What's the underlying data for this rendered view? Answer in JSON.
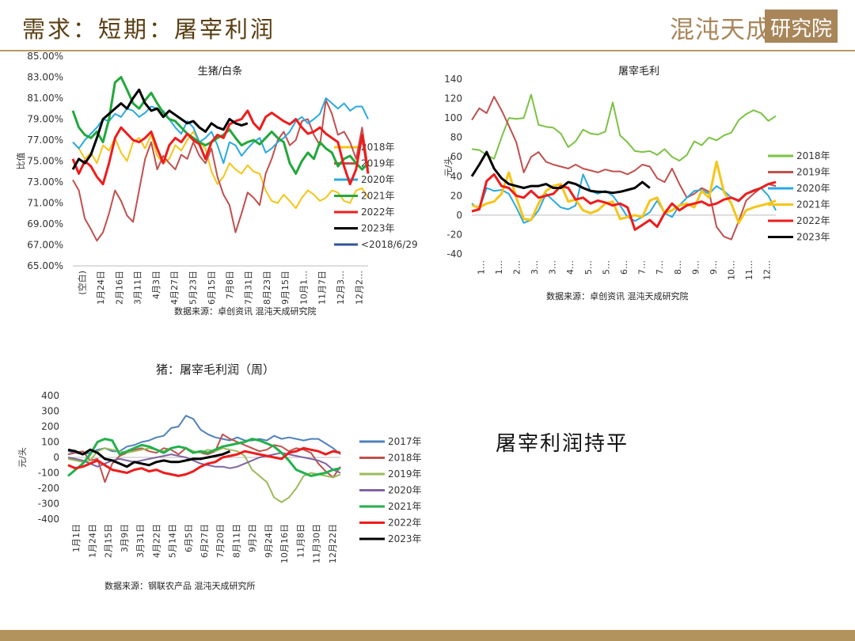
{
  "header": {
    "title": "需求：短期：屠宰利润",
    "logo": {
      "text": "混沌天成",
      "box_text": "研究院"
    }
  },
  "conclusion": "屠宰利润持平",
  "colors": {
    "accent": "#b3935c",
    "title_brown": "#5a3e12"
  },
  "chart_data": [
    {
      "type": "line",
      "title": "生猪/白条",
      "ylabel": "比值",
      "source": "数据来源：卓创资讯 混沌天成研究院",
      "ylim": [
        0.65,
        0.85
      ],
      "yticks": [
        "65.00%",
        "67.00%",
        "69.00%",
        "71.00%",
        "73.00%",
        "75.00%",
        "77.00%",
        "79.00%",
        "81.00%",
        "83.00%",
        "85.00%"
      ],
      "xticks": [
        "(空白)",
        "1月24日",
        "2月16日",
        "3月11日",
        "4月3日",
        "4月27日",
        "5月23日",
        "6月15日",
        "7月8日",
        "7月31日",
        "8月23日",
        "9月15日",
        "10月1…",
        "11月7日",
        "12月3…",
        "12月2…"
      ],
      "legend_position": "right",
      "series": [
        {
          "name": "2018年",
          "color": "#f5c518",
          "values": [
            0.768,
            0.762,
            0.752,
            0.758,
            0.748,
            0.765,
            0.76,
            0.772,
            0.758,
            0.75,
            0.768,
            0.772,
            0.762,
            0.775,
            0.755,
            0.748,
            0.752,
            0.765,
            0.76,
            0.77,
            0.778,
            0.768,
            0.762,
            0.74,
            0.728,
            0.735,
            0.748,
            0.742,
            0.738,
            0.746,
            0.74,
            0.738,
            0.722,
            0.712,
            0.71,
            0.718,
            0.712,
            0.705,
            0.715,
            0.722,
            0.718,
            0.712,
            0.715,
            0.722,
            0.72,
            0.712,
            0.71,
            0.722,
            0.724,
            0.715
          ]
        },
        {
          "name": "2019年",
          "color": "#c0504d",
          "values": [
            0.732,
            0.722,
            0.695,
            0.685,
            0.674,
            0.682,
            0.7,
            0.722,
            0.712,
            0.698,
            0.692,
            0.722,
            0.752,
            0.768,
            0.742,
            0.755,
            0.748,
            0.742,
            0.756,
            0.752,
            0.768,
            0.755,
            0.748,
            0.762,
            0.735,
            0.718,
            0.708,
            0.682,
            0.7,
            0.72,
            0.715,
            0.708,
            0.738,
            0.752,
            0.77,
            0.778,
            0.765,
            0.77,
            0.788,
            0.79,
            0.775,
            0.765,
            0.808,
            0.795,
            0.775,
            0.778,
            0.768,
            0.752,
            0.782,
            0.742
          ]
        },
        {
          "name": "2020年",
          "color": "#2aa9e0",
          "values": [
            0.768,
            0.762,
            0.77,
            0.776,
            0.782,
            0.79,
            0.788,
            0.795,
            0.792,
            0.8,
            0.798,
            0.792,
            0.796,
            0.802,
            0.8,
            0.798,
            0.79,
            0.782,
            0.776,
            0.788,
            0.782,
            0.768,
            0.772,
            0.778,
            0.765,
            0.748,
            0.768,
            0.765,
            0.755,
            0.762,
            0.768,
            0.772,
            0.758,
            0.762,
            0.768,
            0.772,
            0.778,
            0.788,
            0.792,
            0.786,
            0.79,
            0.795,
            0.81,
            0.805,
            0.8,
            0.805,
            0.798,
            0.802,
            0.802,
            0.79
          ]
        },
        {
          "name": "2021年",
          "color": "#22a83a",
          "values": [
            0.798,
            0.782,
            0.775,
            0.772,
            0.778,
            0.768,
            0.79,
            0.825,
            0.83,
            0.818,
            0.805,
            0.8,
            0.808,
            0.815,
            0.805,
            0.796,
            0.79,
            0.788,
            0.782,
            0.776,
            0.772,
            0.768,
            0.765,
            0.768,
            0.772,
            0.775,
            0.78,
            0.772,
            0.765,
            0.768,
            0.77,
            0.766,
            0.772,
            0.778,
            0.772,
            0.768,
            0.748,
            0.738,
            0.75,
            0.758,
            0.752,
            0.768,
            0.762,
            0.758,
            0.745,
            0.752,
            0.755,
            0.748,
            0.742,
            0.748
          ]
        },
        {
          "name": "2022年",
          "color": "#ee1c1c",
          "values": [
            0.752,
            0.738,
            0.75,
            0.745,
            0.735,
            0.728,
            0.748,
            0.772,
            0.782,
            0.776,
            0.77,
            0.768,
            0.772,
            0.778,
            0.762,
            0.748,
            0.765,
            0.772,
            0.768,
            0.776,
            0.77,
            0.766,
            0.752,
            0.768,
            0.775,
            0.772,
            0.785,
            0.788,
            0.79,
            0.798,
            0.786,
            0.78,
            0.792,
            0.796,
            0.792,
            0.788,
            0.785,
            0.79,
            0.782,
            0.776,
            0.778,
            0.782,
            0.776,
            0.772,
            0.768,
            0.745,
            0.728,
            0.742,
            0.775,
            0.738
          ]
        },
        {
          "name": "2023年",
          "color": "#000000",
          "values": [
            0.742,
            0.752,
            0.748,
            0.756,
            0.772,
            0.79,
            0.795,
            0.8,
            0.805,
            0.8,
            0.81,
            0.818,
            0.805,
            0.798,
            0.8,
            0.792,
            0.798,
            0.794,
            0.79,
            0.786,
            0.788,
            0.782,
            0.778,
            0.786,
            0.782,
            0.78,
            0.79,
            0.786,
            0.784,
            0.786
          ]
        },
        {
          "name": "<2018/6/29",
          "color": "#2f5597",
          "values": []
        }
      ]
    },
    {
      "type": "line",
      "title": "屠宰毛利",
      "ylabel": "元/头",
      "source": "数据来源：卓创资讯 混沌天成研究院",
      "ylim": [
        -40,
        140
      ],
      "yticks": [
        -40,
        -20,
        0,
        20,
        40,
        60,
        80,
        100,
        120,
        140
      ],
      "xticks": [
        "1…",
        "1…",
        "2…",
        "3…",
        "3…",
        "4…",
        "5…",
        "5…",
        "6…",
        "7…",
        "7…",
        "8…",
        "9…",
        "9…",
        "10…",
        "11…",
        "12…"
      ],
      "legend_position": "right",
      "series": [
        {
          "name": "2018年",
          "color": "#7cc242",
          "values": [
            68,
            67,
            62,
            58,
            80,
            100,
            99,
            100,
            124,
            93,
            91,
            90,
            84,
            70,
            76,
            88,
            84,
            83,
            86,
            116,
            82,
            75,
            66,
            65,
            66,
            62,
            68,
            60,
            56,
            62,
            76,
            72,
            80,
            77,
            82,
            85,
            98,
            104,
            108,
            105,
            97,
            102
          ]
        },
        {
          "name": "2019年",
          "color": "#c0504d",
          "values": [
            98,
            110,
            105,
            122,
            108,
            92,
            75,
            44,
            60,
            65,
            55,
            52,
            50,
            48,
            52,
            48,
            46,
            44,
            47,
            45,
            45,
            42,
            46,
            52,
            50,
            38,
            34,
            48,
            32,
            18,
            22,
            28,
            24,
            -12,
            -22,
            -25,
            -6,
            15,
            22,
            28,
            32,
            30
          ]
        },
        {
          "name": "2020年",
          "color": "#2aa9e0",
          "values": [
            12,
            6,
            28,
            25,
            26,
            22,
            8,
            -8,
            -5,
            5,
            22,
            15,
            8,
            6,
            10,
            42,
            25,
            22,
            25,
            20,
            10,
            -2,
            -6,
            -2,
            3,
            15,
            2,
            -2,
            10,
            18,
            25,
            26,
            22,
            30,
            25,
            18,
            14,
            22,
            26,
            28,
            20,
            5
          ]
        },
        {
          "name": "2021年",
          "color": "#f5c518",
          "values": [
            10,
            8,
            12,
            14,
            22,
            44,
            18,
            -4,
            -5,
            12,
            25,
            30,
            32,
            14,
            16,
            5,
            2,
            5,
            12,
            14,
            -4,
            -2,
            0,
            -2,
            15,
            18,
            2,
            5,
            10,
            12,
            8,
            25,
            18,
            55,
            24,
            12,
            -8,
            5,
            8,
            10,
            12,
            15
          ]
        },
        {
          "name": "2022年",
          "color": "#ee1c1c",
          "values": [
            4,
            6,
            35,
            42,
            30,
            28,
            20,
            18,
            25,
            18,
            20,
            22,
            30,
            28,
            16,
            18,
            12,
            15,
            13,
            10,
            12,
            8,
            -15,
            -10,
            -5,
            -12,
            2,
            12,
            5,
            10,
            12,
            14,
            10,
            12,
            16,
            18,
            15,
            22,
            25,
            28,
            32,
            34
          ]
        },
        {
          "name": "2023年",
          "color": "#000000",
          "values": [
            40,
            52,
            65,
            48,
            38,
            32,
            30,
            28,
            30,
            30,
            32,
            28,
            28,
            34,
            32,
            28,
            25,
            24,
            24,
            23,
            24,
            26,
            28,
            34,
            28
          ]
        }
      ]
    },
    {
      "type": "line",
      "title": "猪：屠宰毛利润（周）",
      "ylabel": "元/头",
      "source": "数据来源：钢联农产品 混沌天成研究所",
      "ylim": [
        -400,
        400
      ],
      "yticks": [
        -400,
        -300,
        -200,
        -100,
        0,
        100,
        200,
        300,
        400
      ],
      "xticks": [
        "1月1日",
        "1月24日",
        "2月15日",
        "3月9日",
        "3月31日",
        "4月22日",
        "5月14日",
        "6月5日",
        "6月27日",
        "7月20日",
        "8月11日",
        "9月2日",
        "9月24日",
        "10月16日",
        "11月8日",
        "11月30日",
        "12月22日"
      ],
      "legend_position": "right",
      "series": [
        {
          "name": "2017年",
          "color": "#4f81bd",
          "values": [
            40,
            30,
            20,
            30,
            50,
            60,
            40,
            40,
            70,
            80,
            100,
            110,
            130,
            140,
            190,
            200,
            270,
            250,
            180,
            150,
            130,
            120,
            110,
            130,
            110,
            110,
            120,
            110,
            140,
            120,
            130,
            120,
            110,
            120,
            120,
            90,
            60,
            20
          ]
        },
        {
          "name": "2018年",
          "color": "#c0504d",
          "values": [
            20,
            30,
            40,
            -20,
            -10,
            -160,
            -40,
            10,
            30,
            50,
            60,
            40,
            30,
            60,
            50,
            20,
            60,
            40,
            30,
            20,
            40,
            150,
            120,
            100,
            80,
            60,
            40,
            50,
            80,
            70,
            40,
            60,
            50,
            30,
            -40,
            -90,
            -130,
            -60
          ]
        },
        {
          "name": "2019年",
          "color": "#9bbb59",
          "values": [
            -10,
            -20,
            -30,
            -20,
            40,
            60,
            50,
            40,
            30,
            40,
            50,
            60,
            50,
            40,
            60,
            70,
            60,
            40,
            30,
            50,
            40,
            60,
            50,
            40,
            10,
            -80,
            -120,
            -160,
            -260,
            -290,
            -260,
            -200,
            -120,
            -100,
            -110,
            -120,
            -130,
            -110
          ]
        },
        {
          "name": "2020年",
          "color": "#8064a2",
          "values": [
            0,
            -10,
            -20,
            -40,
            -60,
            -40,
            -20,
            -10,
            -20,
            -30,
            -20,
            -10,
            0,
            10,
            20,
            10,
            0,
            -20,
            -40,
            -50,
            -60,
            -60,
            -70,
            -60,
            -40,
            -20,
            0,
            10,
            20,
            30,
            20,
            10,
            0,
            -10,
            -20,
            -40,
            -80,
            -100
          ]
        },
        {
          "name": "2021年",
          "color": "#22b14c",
          "values": [
            -120,
            -80,
            -40,
            20,
            100,
            120,
            110,
            20,
            40,
            60,
            80,
            70,
            50,
            30,
            60,
            70,
            60,
            30,
            40,
            30,
            50,
            70,
            80,
            90,
            100,
            120,
            110,
            90,
            70,
            30,
            -20,
            -80,
            -100,
            -120,
            -110,
            -100,
            -80,
            -70
          ]
        },
        {
          "name": "2022年",
          "color": "#ee1c1c",
          "values": [
            -50,
            -70,
            -60,
            -40,
            -20,
            -50,
            -80,
            -90,
            -100,
            -80,
            -70,
            -90,
            -80,
            -100,
            -110,
            -120,
            -110,
            -90,
            -60,
            -40,
            -30,
            0,
            10,
            20,
            40,
            30,
            20,
            10,
            0,
            -10,
            30,
            40,
            60,
            50,
            40,
            20,
            40,
            30
          ]
        },
        {
          "name": "2023年",
          "color": "#000000",
          "values": [
            50,
            40,
            20,
            50,
            30,
            -10,
            -20,
            -40,
            -60,
            -30,
            -40,
            -50,
            -30,
            -20,
            -30,
            -30,
            -20,
            -10,
            -10,
            0,
            10,
            20,
            40
          ]
        }
      ]
    }
  ]
}
